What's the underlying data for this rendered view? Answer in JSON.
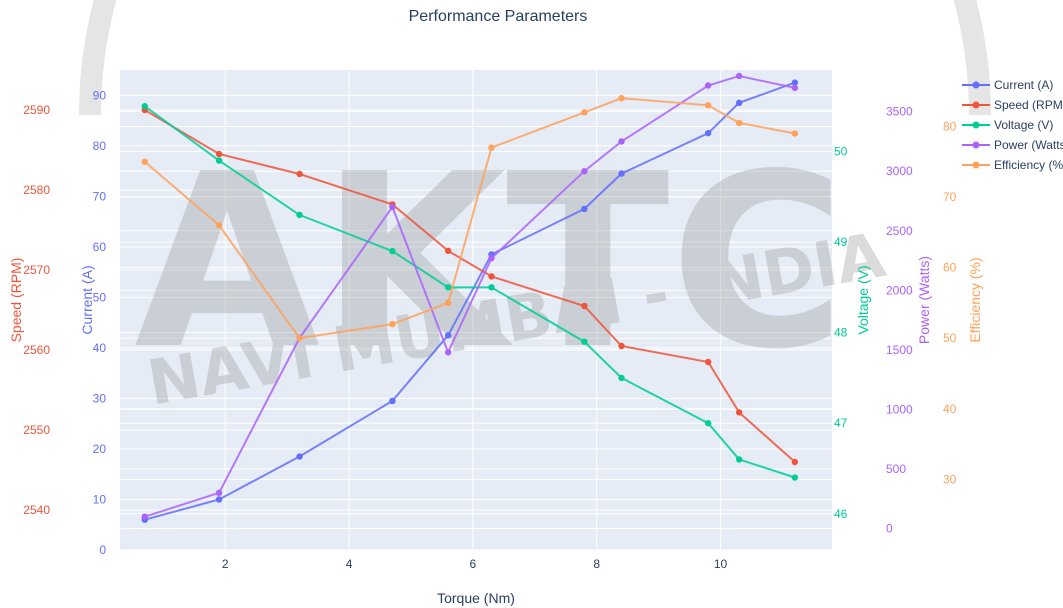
{
  "colors": {
    "plot_bg": "#e5ecf6",
    "grid": "#ffffff",
    "title": "#2a3f5f",
    "current": "#636efa",
    "speed": "#ef553b",
    "voltage": "#00cc96",
    "power": "#ab63fa",
    "efficiency": "#ffa15a",
    "watermark": "#9a9a9a"
  },
  "chart_data": {
    "type": "line",
    "title": "Performance Parameters",
    "xlabel": "Torque (Nm)",
    "xlim": [
      0.3,
      11.8
    ],
    "xticks": [
      2,
      4,
      6,
      8,
      10
    ],
    "x": [
      0.7,
      1.9,
      3.2,
      4.7,
      5.6,
      6.3,
      7.8,
      8.4,
      9.8,
      10.3,
      11.2
    ],
    "series": [
      {
        "name": "Current (A)",
        "key": "current",
        "axis": "y",
        "values": [
          6,
          10,
          18.5,
          29.5,
          42.5,
          58.5,
          67.5,
          74.5,
          82.5,
          88.5,
          92.5
        ]
      },
      {
        "name": "Speed (RPM)",
        "key": "speed",
        "axis": "y2",
        "values": [
          2590,
          2584.5,
          2582,
          2578.2,
          2572.4,
          2569.2,
          2565.5,
          2560.5,
          2558.5,
          2552.2,
          2546
        ]
      },
      {
        "name": "Voltage (V)",
        "key": "voltage",
        "axis": "y3",
        "values": [
          50.5,
          49.9,
          49.3,
          48.9,
          48.5,
          48.5,
          47.9,
          47.5,
          47.0,
          46.6,
          46.4
        ]
      },
      {
        "name": "Power (Watts)",
        "key": "power",
        "axis": "y4",
        "values": [
          100,
          300,
          1600,
          2700,
          1480,
          2270,
          3000,
          3250,
          3720,
          3800,
          3700
        ]
      },
      {
        "name": "Efficiency (%)",
        "key": "efficiency",
        "axis": "y5",
        "values": [
          75,
          66,
          50,
          52,
          55,
          77,
          82,
          84,
          83,
          80.5,
          79
        ]
      }
    ],
    "axes": {
      "y": {
        "title": "Current (A)",
        "range": [
          0,
          95
        ],
        "ticks": [
          0,
          10,
          20,
          30,
          40,
          50,
          60,
          70,
          80,
          90
        ]
      },
      "y2": {
        "title": "Speed (RPM)",
        "range": [
          2535,
          2595
        ],
        "ticks": [
          2540,
          2550,
          2560,
          2570,
          2580,
          2590
        ]
      },
      "y3": {
        "title": "Voltage (V)",
        "range": [
          45.6,
          50.9
        ],
        "ticks": [
          46,
          47,
          48,
          49,
          50
        ]
      },
      "y4": {
        "title": "Power (Watts)",
        "range": [
          -180,
          3850
        ],
        "ticks": [
          0,
          500,
          1000,
          1500,
          2000,
          2500,
          3000,
          3500
        ]
      },
      "y5": {
        "title": "Efficiency (%)",
        "range": [
          20,
          88
        ],
        "ticks": [
          30,
          40,
          50,
          60,
          70,
          80
        ]
      }
    },
    "grid": true,
    "legend_position": "top-right",
    "watermark": {
      "logo": "AKTC",
      "text": "NAVI MUMBAI - INDIA"
    }
  }
}
